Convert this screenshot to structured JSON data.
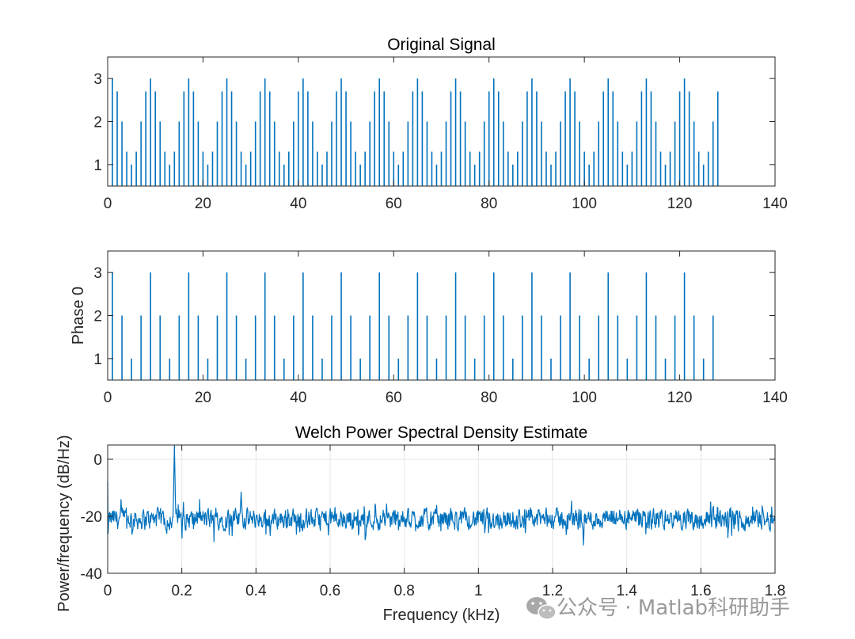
{
  "chart_data": [
    {
      "type": "stem",
      "title": "Original Signal",
      "xlabel": "",
      "ylabel": "",
      "xlim": [
        0,
        140
      ],
      "ylim": [
        0.5,
        3.5
      ],
      "baseline": 0.5,
      "xticks": [
        0,
        20,
        40,
        60,
        80,
        100,
        120,
        140
      ],
      "yticks": [
        1,
        2,
        3
      ],
      "period": 8,
      "period_values": [
        3,
        2.7,
        2,
        1.3,
        1,
        1.3,
        2,
        2.7
      ],
      "x_start": 1,
      "x_end": 128,
      "series": [
        {
          "x_range": [
            1,
            128
          ],
          "description_values": "repeating 8-sample pattern 3,2.7,2,1.3,1,1.3,2,2.7"
        }
      ],
      "color": "#0072bd"
    },
    {
      "type": "stem",
      "title": "",
      "xlabel": "",
      "ylabel": "Phase 0",
      "xlim": [
        0,
        140
      ],
      "ylim": [
        0.5,
        3.5
      ],
      "baseline": 0.5,
      "xticks": [
        0,
        20,
        40,
        60,
        80,
        100,
        120,
        140
      ],
      "yticks": [
        1,
        2,
        3
      ],
      "period": 8,
      "period_values": [
        3,
        2,
        1,
        2
      ],
      "sample_step": 2,
      "x_start": 1,
      "x_end": 127,
      "color": "#0072bd"
    },
    {
      "type": "line",
      "title": "Welch Power Spectral Density Estimate",
      "xlabel": "Frequency (kHz)",
      "ylabel": "Power/frequency (dB/Hz)",
      "xlim": [
        0,
        1.8
      ],
      "ylim": [
        -40,
        5
      ],
      "xticks": [
        0,
        0.2,
        0.4,
        0.6,
        0.8,
        1,
        1.2,
        1.4,
        1.6,
        1.8
      ],
      "xtick_labels": [
        "0",
        "0.2",
        "0.4",
        "0.6",
        "0.8",
        "1",
        "1.2",
        "1.4",
        "1.6",
        "1.8"
      ],
      "yticks": [
        -40,
        -20,
        0
      ],
      "grid": true,
      "noise_floor_db": -21,
      "noise_spread_db": 4,
      "peaks": [
        {
          "x": 0.18,
          "y": 6
        },
        {
          "x": 0.36,
          "y": -11.5
        }
      ],
      "color": "#0072bd"
    }
  ],
  "watermark": {
    "text": "公众号 · Matlab科研助手",
    "icon": "wechat-icon"
  }
}
